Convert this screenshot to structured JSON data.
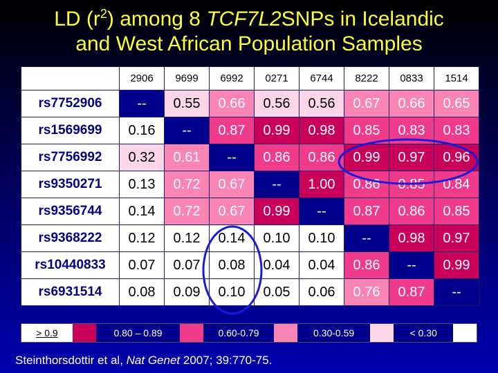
{
  "title": {
    "line1_prefix": "LD (r",
    "line1_sup": "2",
    "line1_mid": ") among 8 ",
    "line1_gene": "TCF7L2",
    "line1_suffix": "SNPs in Icelandic",
    "line2": "and West African Population Samples"
  },
  "table": {
    "columns": [
      "2906",
      "9699",
      "6992",
      "0271",
      "6744",
      "8222",
      "0833",
      "1514"
    ],
    "rows": [
      {
        "label": "rs7752906",
        "cells": [
          "--",
          "0.55",
          "0.66",
          "0.56",
          "0.56",
          "0.67",
          "0.66",
          "0.65"
        ]
      },
      {
        "label": "rs1569699",
        "cells": [
          "0.16",
          "--",
          "0.87",
          "0.99",
          "0.98",
          "0.85",
          "0.83",
          "0.83"
        ]
      },
      {
        "label": "rs7756992",
        "cells": [
          "0.32",
          "0.61",
          "--",
          "0.86",
          "0.86",
          "0.99",
          "0.97",
          "0.96"
        ]
      },
      {
        "label": "rs9350271",
        "cells": [
          "0.13",
          "0.72",
          "0.67",
          "--",
          "1.00",
          "0.86",
          "0.85",
          "0.84"
        ]
      },
      {
        "label": "rs9356744",
        "cells": [
          "0.14",
          "0.72",
          "0.67",
          "0.99",
          "--",
          "0.87",
          "0.86",
          "0.85"
        ]
      },
      {
        "label": "rs9368222",
        "cells": [
          "0.12",
          "0.12",
          "0.14",
          "0.10",
          "0.10",
          "--",
          "0.98",
          "0.97"
        ]
      },
      {
        "label": "rs10440833",
        "cells": [
          "0.07",
          "0.07",
          "0.08",
          "0.04",
          "0.04",
          "0.86",
          "--",
          "0.99"
        ]
      },
      {
        "label": "rs6931514",
        "cells": [
          "0.08",
          "0.09",
          "0.10",
          "0.05",
          "0.06",
          "0.76",
          "0.87",
          "--"
        ]
      }
    ]
  },
  "legend": {
    "items": [
      {
        "label": "> 0.9",
        "color": "#c8005a"
      },
      {
        "label": "0.80 – 0.89",
        "color": "#f03a8c"
      },
      {
        "label": "0.60-0.79",
        "color": "#fa84b6"
      },
      {
        "label": "0.30-0.59",
        "color": "#fcd6e6"
      },
      {
        "label": "< 0.30",
        "color": "#ffffff"
      }
    ]
  },
  "citation": {
    "authors": "Steinthorsdottir et al, ",
    "journal": "Nat Genet",
    "rest": " 2007; 39:770-75."
  },
  "colors": {
    "title": "#ffff33",
    "label_text": "#000080",
    "diagonal": "#00008c",
    "highlight_ellipse": "#1a1adc"
  }
}
